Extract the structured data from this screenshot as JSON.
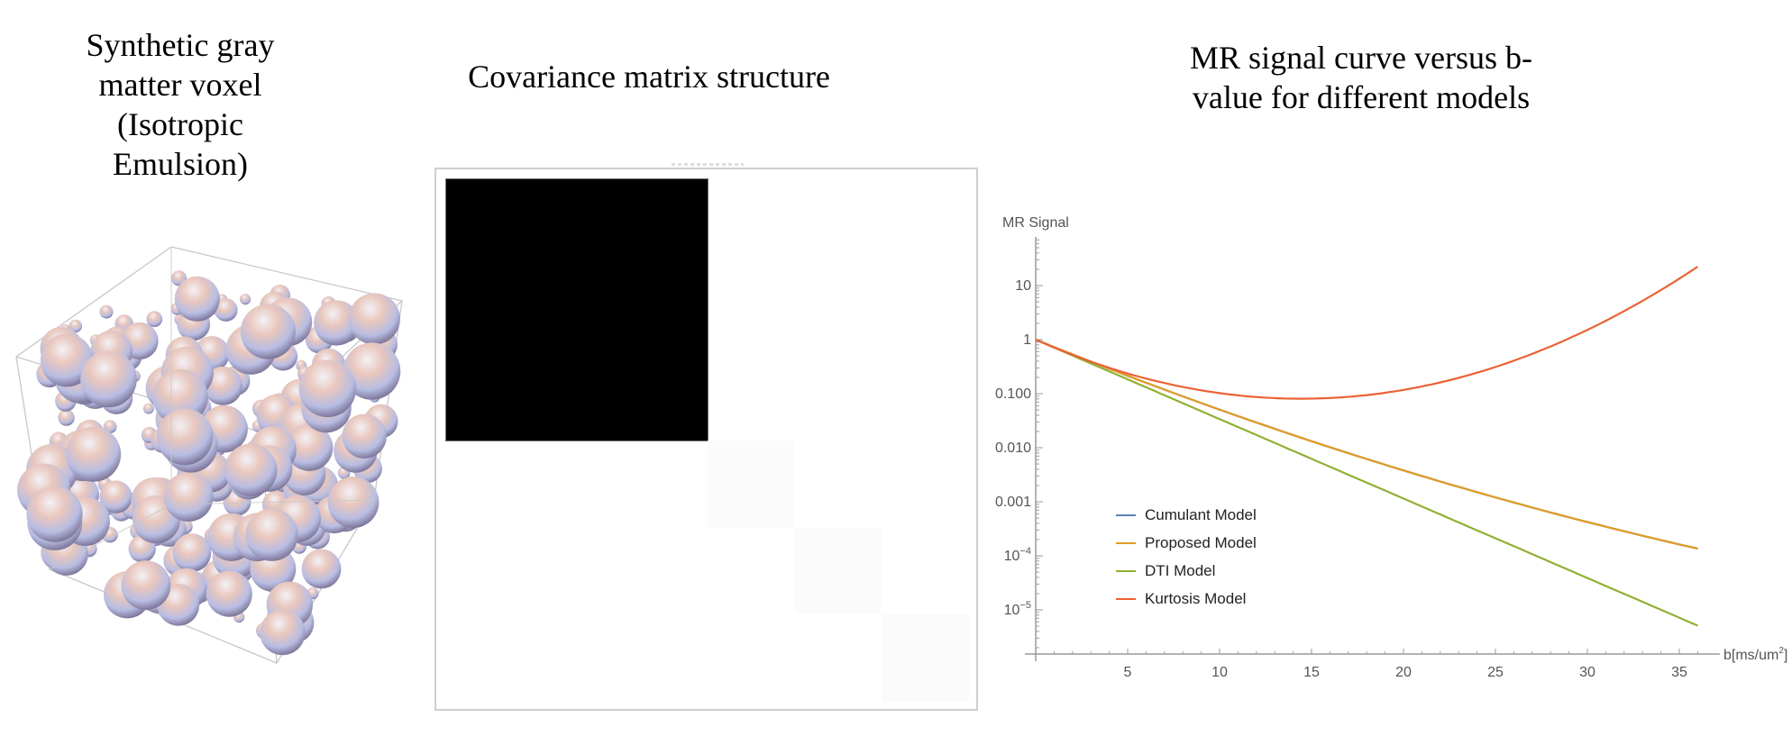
{
  "panels": {
    "voxel": {
      "title_lines": [
        "Synthetic gray",
        "matter voxel",
        "(Isotropic",
        "Emulsion)"
      ]
    },
    "covariance": {
      "title_lines": [
        "Covariance matrix structure"
      ],
      "grid_size": 6,
      "blocks": [
        {
          "row": 0,
          "col": 0,
          "span": 3,
          "color": "#000000"
        },
        {
          "row": 3,
          "col": 3,
          "span": 1,
          "color": "#fbfbfb"
        },
        {
          "row": 4,
          "col": 4,
          "span": 1,
          "color": "#fbfbfb"
        },
        {
          "row": 5,
          "col": 5,
          "span": 1,
          "color": "#fbfbfb"
        }
      ]
    },
    "signal": {
      "title_lines": [
        "MR signal curve versus b-",
        "value for different models"
      ],
      "ylabel": "MR Signal",
      "xlabel": "b[ms/um",
      "xlabel_sup": "2",
      "xlabel_close": "]",
      "ytick_labels": [
        "10",
        "1",
        "0.100",
        "0.010",
        "0.001",
        "10",
        "10"
      ],
      "ytick_sups": [
        "",
        "",
        "",
        "",
        "",
        "−4",
        "−5"
      ],
      "xtick_labels": [
        "5",
        "10",
        "15",
        "20",
        "25",
        "30",
        "35"
      ]
    }
  },
  "legend": {
    "items": [
      {
        "label": "Cumulant Model",
        "color": "#5E81B5"
      },
      {
        "label": "Proposed Model",
        "color": "#E19C24"
      },
      {
        "label": "DTI Model",
        "color": "#8FB032"
      },
      {
        "label": "Kurtosis Model",
        "color": "#EB6235"
      }
    ]
  },
  "chart_data": {
    "type": "line",
    "title": "MR signal curve versus b-value for different models",
    "xlabel": "b[ms/um^2]",
    "ylabel": "MR Signal",
    "yscale": "log",
    "xlim": [
      0,
      37
    ],
    "ylim": [
      1.5e-06,
      60
    ],
    "xticks": [
      5,
      10,
      15,
      20,
      25,
      30,
      35
    ],
    "yticks": [
      10,
      1,
      0.1,
      0.01,
      0.001,
      0.0001,
      1e-05
    ],
    "grid": false,
    "legend_position": "lower-left inside",
    "x": [
      0,
      4,
      8,
      12,
      13.6,
      16,
      20,
      24,
      28,
      32,
      36
    ],
    "series": [
      {
        "name": "Cumulant Model",
        "color": "#5E81B5",
        "values": [
          1,
          0.33,
          0.12,
          0.048,
          0.037,
          0.024,
          0.0098,
          0.0042,
          0.0018,
          0.00082,
          0.00012
        ]
      },
      {
        "name": "Proposed Model",
        "color": "#E19C24",
        "values": [
          1,
          0.33,
          0.12,
          0.048,
          0.037,
          0.024,
          0.0098,
          0.0042,
          0.0018,
          0.00068,
          0.00012
        ]
      },
      {
        "name": "DTI Model",
        "color": "#8FB032",
        "values": [
          1,
          0.26,
          0.067,
          0.017,
          0.01,
          0.0044,
          0.0011,
          0.00029,
          7.5e-05,
          1.9e-05,
          5.1e-06
        ]
      },
      {
        "name": "Kurtosis Model",
        "color": "#EB6235",
        "values": [
          1,
          0.3,
          0.14,
          0.098,
          0.093,
          0.1,
          0.16,
          0.38,
          1.3,
          5.6,
          31
        ]
      }
    ]
  }
}
